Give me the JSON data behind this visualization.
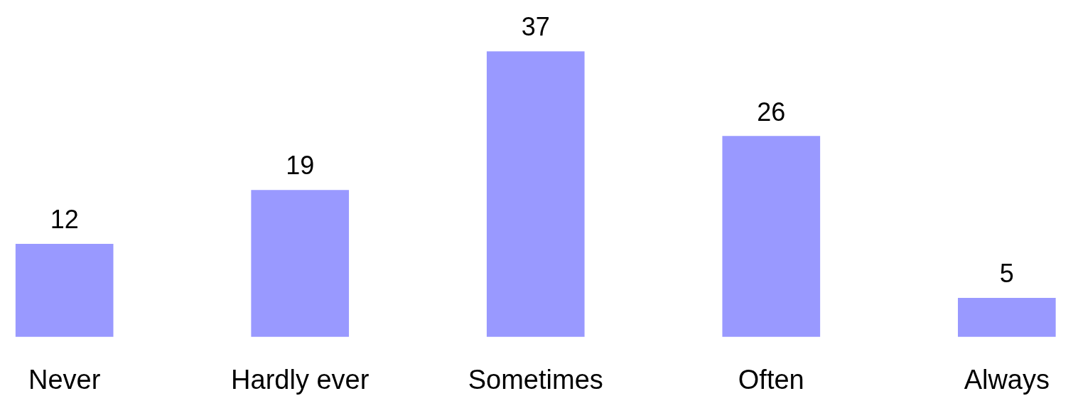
{
  "chart_data": {
    "type": "bar",
    "categories": [
      "Never",
      "Hardly ever",
      "Sometimes",
      "Often",
      "Always"
    ],
    "values": [
      12,
      19,
      37,
      26,
      5
    ],
    "color": "#9999ff",
    "data_labels": true,
    "grid": false,
    "legend": false
  }
}
